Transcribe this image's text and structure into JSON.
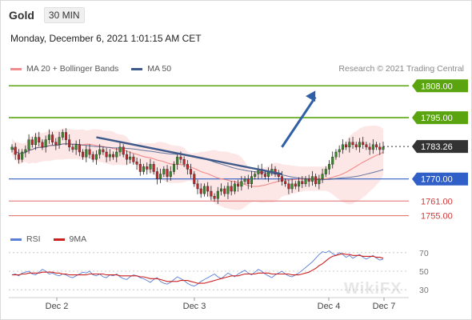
{
  "header": {
    "symbol": "Gold",
    "timeframe": "30 MIN"
  },
  "datetime": "Monday, December 6, 2021 1:01:15 AM CET",
  "research": "Research © 2021 Trading Central",
  "watermark": "WikiFX",
  "colors": {
    "ma20": "#f08c8c",
    "ma50": "#3d5a8a",
    "bands": "#fde2e2",
    "resistance": "#5aa50f",
    "support": "#2f5fc7",
    "minor": "#e06a6a",
    "last": "#333333",
    "up": "#3a8a2a",
    "down": "#c0282c",
    "trendline": "#3d5a8a",
    "arrow": "#2f5fa6",
    "rsi": "#5b7fd6",
    "rsi_ma": "#cc1f1f"
  },
  "chart_data": [
    {
      "type": "candlestick",
      "legend": [
        {
          "name": "MA 20 + Bollinger Bands",
          "color": "#f08c8c"
        },
        {
          "name": "MA 50",
          "color": "#3d5a8a"
        }
      ],
      "y_range": [
        1750,
        1812
      ],
      "x_ticks": [
        "Dec 2",
        "Dec 3",
        "Dec 4",
        "Dec 7"
      ],
      "levels": [
        {
          "value": 1808.0,
          "label": "1808.00",
          "kind": "resistance"
        },
        {
          "value": 1795.0,
          "label": "1795.00",
          "kind": "resistance"
        },
        {
          "value": 1783.26,
          "label": "1783.26",
          "kind": "last"
        },
        {
          "value": 1770.0,
          "label": "1770.00",
          "kind": "support"
        },
        {
          "value": 1761.0,
          "label": "1761.00",
          "kind": "minor"
        },
        {
          "value": 1755.0,
          "label": "1755.00",
          "kind": "minor"
        }
      ],
      "close": [
        1783,
        1780,
        1778,
        1781,
        1782,
        1786,
        1784,
        1787,
        1785,
        1783,
        1786,
        1788,
        1785,
        1784,
        1787,
        1789,
        1786,
        1783,
        1782,
        1784,
        1781,
        1779,
        1782,
        1780,
        1778,
        1780,
        1782,
        1781,
        1779,
        1780,
        1779,
        1781,
        1783,
        1780,
        1778,
        1779,
        1777,
        1776,
        1773,
        1775,
        1774,
        1776,
        1773,
        1770,
        1772,
        1774,
        1771,
        1773,
        1776,
        1779,
        1778,
        1776,
        1774,
        1772,
        1768,
        1766,
        1764,
        1767,
        1765,
        1763,
        1762,
        1765,
        1766,
        1764,
        1767,
        1765,
        1768,
        1767,
        1769,
        1770,
        1768,
        1771,
        1772,
        1774,
        1772,
        1771,
        1773,
        1774,
        1772,
        1771,
        1769,
        1768,
        1766,
        1768,
        1767,
        1769,
        1768,
        1770,
        1769,
        1771,
        1768,
        1770,
        1772,
        1774,
        1776,
        1779,
        1781,
        1782,
        1784,
        1783,
        1785,
        1784,
        1783,
        1785,
        1784,
        1783,
        1782,
        1784,
        1783,
        1782,
        1783
      ],
      "trendline": [
        [
          25,
          1787
        ],
        [
          80,
          1772
        ]
      ],
      "arrow": {
        "from": [
          80,
          1783
        ],
        "to": [
          88,
          1806
        ]
      }
    },
    {
      "type": "line",
      "legend": [
        {
          "name": "RSI",
          "color": "#5b7fd6"
        },
        {
          "name": "9MA",
          "color": "#cc1f1f"
        }
      ],
      "y_range": [
        25,
        75
      ],
      "y_ticks": [
        70,
        50,
        30
      ],
      "rsi": [
        46,
        47,
        45,
        48,
        49,
        50,
        47,
        46,
        49,
        52,
        50,
        47,
        48,
        46,
        45,
        47,
        46,
        44,
        43,
        45,
        47,
        49,
        48,
        50,
        46,
        45,
        47,
        44,
        43,
        46,
        45,
        47,
        44,
        42,
        41,
        44,
        46,
        45,
        43,
        42,
        40,
        38,
        41,
        43,
        39,
        37,
        36,
        38,
        41,
        44,
        42,
        40,
        37,
        35,
        34,
        36,
        39,
        41,
        43,
        45,
        47,
        44,
        42,
        45,
        48,
        46,
        44,
        47,
        49,
        51,
        48,
        46,
        49,
        52,
        50,
        47,
        45,
        43,
        46,
        48,
        50,
        47,
        45,
        44,
        46,
        48,
        51,
        54,
        57,
        60,
        64,
        68,
        71,
        70,
        72,
        69,
        67,
        70,
        68,
        65,
        67,
        64,
        66,
        68,
        65,
        63,
        65,
        67,
        64,
        62,
        63
      ],
      "rsi_ma": [
        46,
        46,
        46,
        47,
        47,
        48,
        48,
        48,
        48,
        49,
        49,
        49,
        49,
        48,
        48,
        47,
        47,
        46,
        46,
        46,
        46,
        46,
        46,
        47,
        47,
        47,
        47,
        47,
        46,
        46,
        46,
        46,
        45,
        45,
        45,
        45,
        45,
        45,
        44,
        44,
        43,
        42,
        42,
        42,
        41,
        40,
        39,
        39,
        39,
        39,
        40,
        40,
        40,
        39,
        38,
        37,
        37,
        37,
        38,
        39,
        40,
        41,
        42,
        43,
        44,
        45,
        45,
        45,
        46,
        47,
        47,
        47,
        47,
        48,
        48,
        48,
        48,
        47,
        47,
        47,
        47,
        47,
        47,
        46,
        46,
        46,
        47,
        48,
        49,
        51,
        53,
        56,
        58,
        61,
        64,
        66,
        67,
        68,
        69,
        68,
        68,
        67,
        67,
        67,
        66,
        66,
        66,
        66,
        65,
        65,
        64
      ]
    }
  ]
}
